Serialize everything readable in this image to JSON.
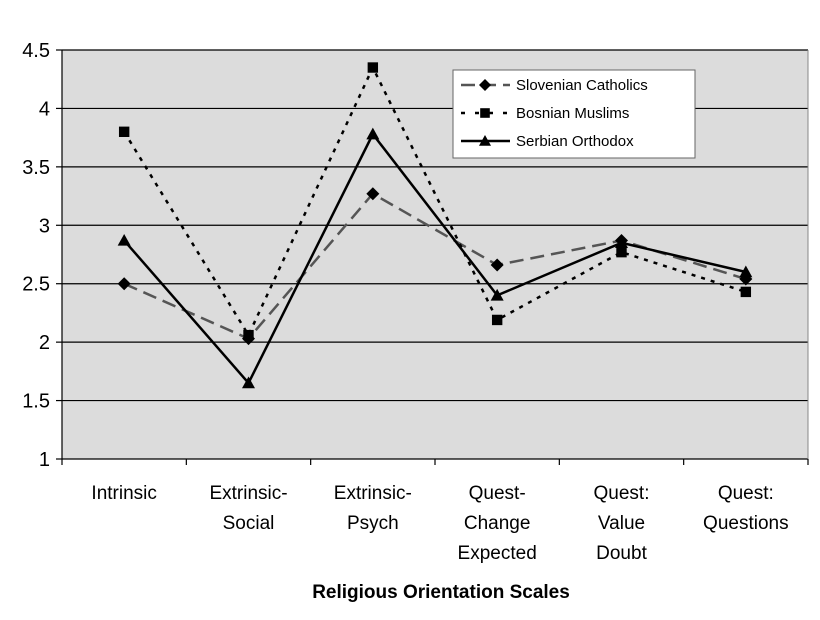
{
  "chart_data": {
    "type": "line",
    "title": "",
    "xlabel": "Religious Orientation Scales",
    "ylabel": "",
    "ylim": [
      1,
      4.5
    ],
    "yticks": [
      "1",
      "1.5",
      "2",
      "2.5",
      "3",
      "3.5",
      "4",
      "4.5"
    ],
    "grid": true,
    "legend_position": "top-right",
    "categories": [
      [
        "Intrinsic"
      ],
      [
        "Extrinsic-",
        "Social"
      ],
      [
        "Extrinsic-",
        "Psych"
      ],
      [
        "Quest-",
        "Change",
        "Expected"
      ],
      [
        "Quest:",
        "Value",
        "Doubt"
      ],
      [
        "Quest:",
        "Questions"
      ]
    ],
    "series": [
      {
        "name": "Slovenian Catholics",
        "marker": "diamond",
        "dash": "long-dash",
        "color": "#555555",
        "values": [
          2.5,
          2.03,
          3.27,
          2.66,
          2.87,
          2.54
        ]
      },
      {
        "name": "Bosnian Muslims",
        "marker": "square",
        "dash": "dotted",
        "color": "#000000",
        "values": [
          3.8,
          2.06,
          4.35,
          2.19,
          2.77,
          2.43
        ]
      },
      {
        "name": "Serbian Orthodox",
        "marker": "triangle",
        "dash": "solid",
        "color": "#000000",
        "values": [
          2.87,
          1.65,
          3.78,
          2.4,
          2.85,
          2.6
        ]
      }
    ]
  }
}
